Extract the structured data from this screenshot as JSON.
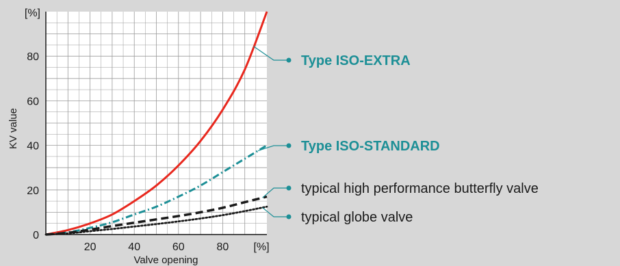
{
  "chart_data": {
    "type": "line",
    "xlabel": "Valve opening",
    "ylabel": "KV value",
    "x_unit_label": "[%]",
    "y_unit_label": "[%]",
    "xlim": [
      0,
      100
    ],
    "ylim": [
      0,
      100
    ],
    "x_ticks": [
      "20",
      "40",
      "60",
      "80"
    ],
    "y_ticks": [
      "0",
      "20",
      "40",
      "60",
      "80"
    ],
    "grid": true,
    "legend_position": "right",
    "series": [
      {
        "name": "Type ISO-EXTRA",
        "color": "#e8281e",
        "style": "solid",
        "legend_bold": true,
        "legend_color": "#1c8f96",
        "x": [
          0,
          10,
          20,
          30,
          40,
          50,
          60,
          70,
          80,
          90,
          100
        ],
        "y": [
          0,
          2,
          5,
          9,
          15,
          22,
          31,
          42,
          56,
          74,
          100
        ]
      },
      {
        "name": "Type ISO-STANDARD",
        "color": "#1c8f96",
        "style": "dash-dot",
        "legend_bold": true,
        "legend_color": "#1c8f96",
        "x": [
          0,
          10,
          20,
          30,
          40,
          50,
          60,
          70,
          80,
          90,
          100
        ],
        "y": [
          0,
          1,
          3,
          5.5,
          9,
          12.5,
          17,
          22,
          28,
          34,
          40
        ]
      },
      {
        "name": "typical high performance butterfly valve",
        "color": "#1a1a1a",
        "style": "dashed",
        "legend_bold": false,
        "legend_color": "#1a1a1a",
        "x": [
          0,
          10,
          20,
          30,
          40,
          50,
          60,
          70,
          80,
          90,
          100
        ],
        "y": [
          0,
          0.8,
          2.2,
          3.8,
          5.3,
          6.8,
          8.3,
          10,
          12,
          14.5,
          17
        ]
      },
      {
        "name": "typical globe valve",
        "color": "#1a1a1a",
        "style": "dotted",
        "legend_bold": false,
        "legend_color": "#1a1a1a",
        "x": [
          0,
          10,
          20,
          30,
          40,
          50,
          60,
          70,
          80,
          90,
          100
        ],
        "y": [
          0,
          0.5,
          1.5,
          2.5,
          3.6,
          4.7,
          5.9,
          7.2,
          8.7,
          10.5,
          12.5
        ]
      }
    ]
  },
  "colors": {
    "background": "#d7d7d7",
    "plot_background": "#ffffff",
    "grid": "#9a9a9a",
    "connector": "#1c8f96"
  }
}
